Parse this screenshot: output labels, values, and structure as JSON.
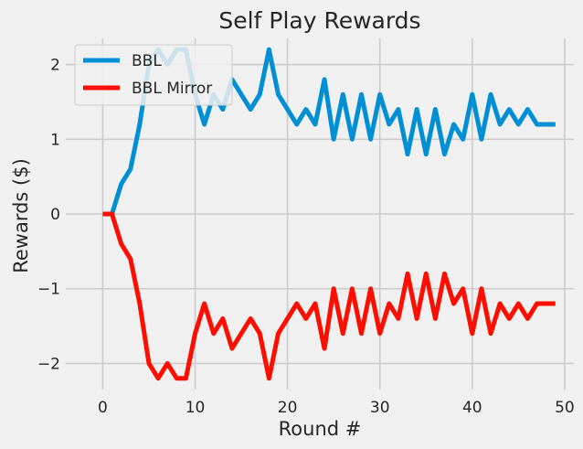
{
  "chart_data": {
    "type": "line",
    "title": "Self Play Rewards",
    "xlabel": "Round #",
    "ylabel": "Rewards ($)",
    "xlim": [
      -4,
      51
    ],
    "ylim": [
      -2.35,
      2.35
    ],
    "xticks": [
      0,
      10,
      20,
      30,
      40,
      50
    ],
    "yticks": [
      -2,
      -1,
      0,
      1,
      2
    ],
    "tick_labels_x": [
      "0",
      "10",
      "20",
      "30",
      "40",
      "50"
    ],
    "tick_labels_y": [
      "−2",
      "−1",
      "0",
      "1",
      "2"
    ],
    "grid": true,
    "legend_position": "top-left",
    "x": [
      0,
      1,
      2,
      3,
      4,
      5,
      6,
      7,
      8,
      9,
      10,
      11,
      12,
      13,
      14,
      15,
      16,
      17,
      18,
      19,
      20,
      21,
      22,
      23,
      24,
      25,
      26,
      27,
      28,
      29,
      30,
      31,
      32,
      33,
      34,
      35,
      36,
      37,
      38,
      39,
      40,
      41,
      42,
      43,
      44,
      45,
      46,
      47,
      48,
      49
    ],
    "series": [
      {
        "name": "BBL",
        "color": "#008fd5",
        "values": [
          0,
          0,
          0.4,
          0.6,
          1.2,
          2.0,
          2.2,
          2.0,
          2.2,
          2.2,
          1.6,
          1.2,
          1.6,
          1.4,
          1.8,
          1.6,
          1.4,
          1.6,
          2.2,
          1.6,
          1.4,
          1.2,
          1.4,
          1.2,
          1.8,
          1.0,
          1.6,
          1.0,
          1.6,
          1.0,
          1.6,
          1.2,
          1.4,
          0.8,
          1.4,
          0.8,
          1.4,
          0.8,
          1.2,
          1.0,
          1.6,
          1.0,
          1.6,
          1.2,
          1.4,
          1.2,
          1.4,
          1.2,
          1.2,
          1.2
        ]
      },
      {
        "name": "BBL Mirror",
        "color": "#fc0e00",
        "values": [
          0,
          0,
          -0.4,
          -0.6,
          -1.2,
          -2.0,
          -2.2,
          -2.0,
          -2.2,
          -2.2,
          -1.6,
          -1.2,
          -1.6,
          -1.4,
          -1.8,
          -1.6,
          -1.4,
          -1.6,
          -2.2,
          -1.6,
          -1.4,
          -1.2,
          -1.4,
          -1.2,
          -1.8,
          -1.0,
          -1.6,
          -1.0,
          -1.6,
          -1.0,
          -1.6,
          -1.2,
          -1.4,
          -0.8,
          -1.4,
          -0.8,
          -1.4,
          -0.8,
          -1.2,
          -1.0,
          -1.6,
          -1.0,
          -1.6,
          -1.2,
          -1.4,
          -1.2,
          -1.4,
          -1.2,
          -1.2,
          -1.2
        ]
      }
    ]
  }
}
